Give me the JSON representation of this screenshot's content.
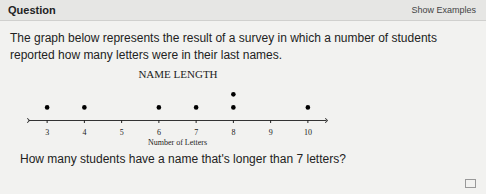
{
  "header": {
    "title": "Question",
    "link": "Show Examples"
  },
  "prompt": "The graph below represents the result of a survey in which a number of students reported how many letters were in their last names.",
  "question": "How many students have a name that's longer than 7 letters?",
  "chart_data": {
    "type": "dot_plot",
    "title": "NAME LENGTH",
    "x_label": "Number of Letters",
    "x": [
      3,
      4,
      5,
      6,
      7,
      8,
      9,
      10
    ],
    "values": [
      1,
      1,
      0,
      1,
      1,
      2,
      0,
      1
    ],
    "xlim": [
      2.5,
      10.5
    ],
    "xticks": [
      3,
      4,
      5,
      6,
      7,
      8,
      9,
      10
    ],
    "color": "#000000",
    "tick_labels": "x",
    "grid": false
  }
}
